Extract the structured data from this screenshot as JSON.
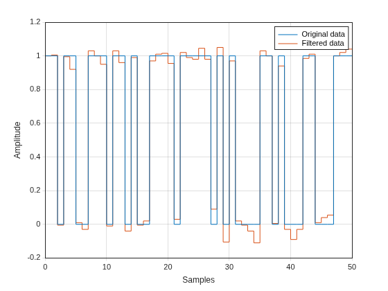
{
  "chart_data": {
    "type": "line",
    "line_style": "steps",
    "xlabel": "Samples",
    "ylabel": "Amplitude",
    "x": [
      0,
      1,
      2,
      3,
      4,
      5,
      6,
      7,
      8,
      9,
      10,
      11,
      12,
      13,
      14,
      15,
      16,
      17,
      18,
      19,
      20,
      21,
      22,
      23,
      24,
      25,
      26,
      27,
      28,
      29,
      30,
      31,
      32,
      33,
      34,
      35,
      36,
      37,
      38,
      39,
      40,
      41,
      42,
      43,
      44,
      45,
      46,
      47,
      48,
      49,
      50
    ],
    "series": [
      {
        "name": "Original data",
        "color": "#0072bd",
        "values": [
          1,
          1,
          1,
          0,
          1,
          1,
          0,
          0,
          1,
          1,
          1,
          0,
          1,
          1,
          0,
          1,
          0,
          0,
          1,
          1,
          1,
          1,
          0,
          1,
          1,
          1,
          1,
          1,
          0,
          1,
          0,
          1,
          0,
          0,
          0,
          0,
          1,
          1,
          0,
          1,
          0,
          0,
          0,
          1,
          1,
          0,
          0,
          0,
          1,
          1,
          1
        ]
      },
      {
        "name": "Filtered data",
        "color": "#d95319",
        "values": [
          1.0,
          1.0,
          1.005,
          -0.005,
          0.995,
          0.92,
          0.01,
          -0.03,
          1.03,
          1.0,
          0.95,
          -0.01,
          1.03,
          0.96,
          -0.04,
          0.99,
          -0.005,
          0.02,
          0.97,
          1.01,
          1.015,
          0.955,
          0.03,
          1.02,
          0.99,
          0.98,
          1.045,
          0.98,
          0.09,
          1.05,
          -0.105,
          0.97,
          0.02,
          -0.005,
          -0.04,
          -0.11,
          1.03,
          1.0,
          0.005,
          0.94,
          -0.03,
          -0.09,
          -0.03,
          0.985,
          1.01,
          0.01,
          0.04,
          0.055,
          1.0,
          1.02,
          1.04
        ]
      }
    ],
    "xlim": [
      0,
      50
    ],
    "xticks": [
      0,
      10,
      20,
      30,
      40,
      50
    ],
    "ylim": [
      -0.2,
      1.2
    ],
    "yticks": [
      -0.2,
      0,
      0.2,
      0.4,
      0.6,
      0.8,
      1,
      1.2
    ],
    "grid": true,
    "legend": "upper right"
  }
}
